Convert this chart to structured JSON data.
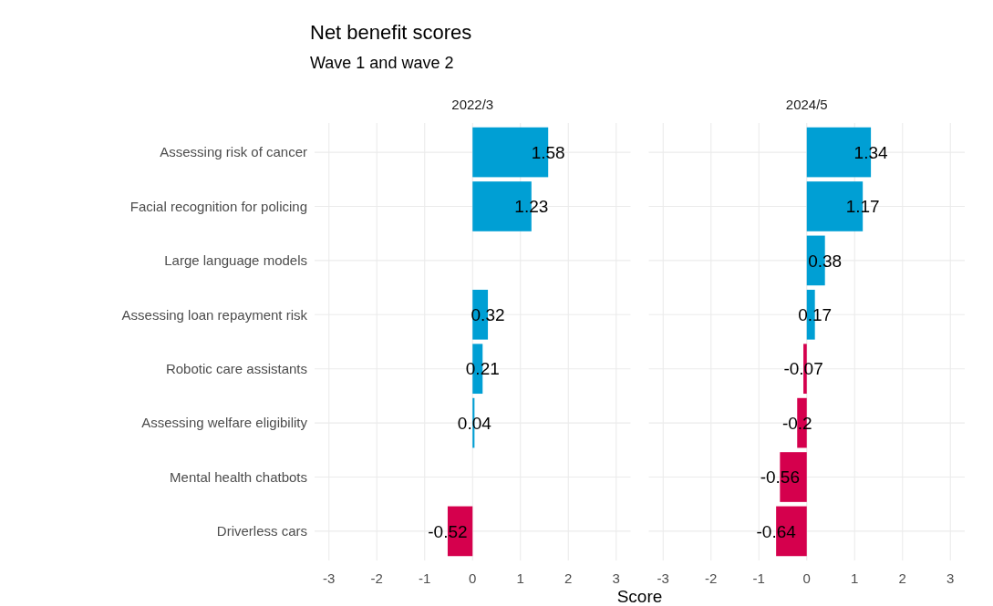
{
  "chart_data": [
    {
      "type": "bar",
      "orientation": "horizontal",
      "title": "Net benefit scores",
      "subtitle": "Wave 1 and wave 2",
      "xlabel": "Score",
      "annotations": [
        "2022/3"
      ],
      "categories": [
        "Assessing risk of cancer",
        "Facial recognition for policing",
        "Large language models",
        "Assessing loan repayment risk",
        "Robotic care assistants",
        "Assessing welfare eligibility",
        "Mental health chatbots",
        "Driverless cars"
      ],
      "values": [
        1.58,
        1.23,
        null,
        0.32,
        0.21,
        0.04,
        null,
        -0.52
      ],
      "colors": [
        "#009fd4",
        "#009fd4",
        null,
        "#009fd4",
        "#009fd4",
        "#009fd4",
        null,
        "#d5004d"
      ],
      "xlim": [
        -3.3,
        3.3
      ],
      "xticks": [
        -3,
        -2,
        -1,
        0,
        1,
        2,
        3
      ],
      "grid": true,
      "data_labels": true
    },
    {
      "type": "bar",
      "orientation": "horizontal",
      "annotations": [
        "2024/5"
      ],
      "tick_labels": "x",
      "values": [
        1.34,
        1.17,
        0.38,
        0.17,
        -0.07,
        -0.2,
        -0.56,
        -0.64
      ],
      "colors": [
        "#009fd4",
        "#009fd4",
        "#009fd4",
        "#009fd4",
        "#d5004d",
        "#d5004d",
        "#d5004d",
        "#d5004d"
      ],
      "xlim": [
        -3.3,
        3.3
      ],
      "xticks": [
        -3,
        -2,
        -1,
        0,
        1,
        2,
        3
      ],
      "grid": true,
      "data_labels": true
    }
  ]
}
